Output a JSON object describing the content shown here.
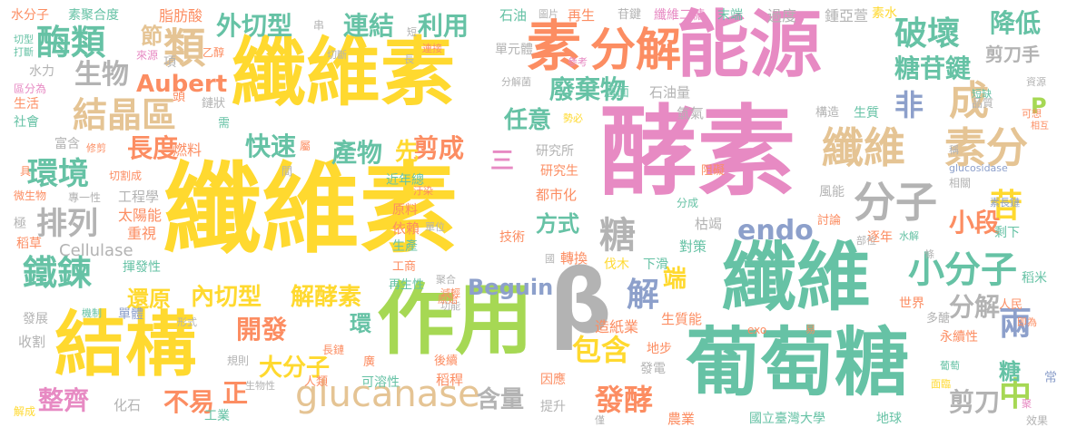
{
  "palette": {
    "green": "#66c2a5",
    "orange": "#fc8d62",
    "blue": "#8da0cb",
    "pink": "#e78ac3",
    "lime": "#a6d854",
    "yellow": "#ffd92f",
    "tan": "#e5c494",
    "gray": "#b3b3b3"
  },
  "words": [
    {
      "text": "酵素",
      "color": "pink"
    },
    {
      "text": "纖維素",
      "color": "yellow"
    },
    {
      "text": "纖維素",
      "color": "yellow"
    },
    {
      "text": "能源",
      "color": "pink"
    },
    {
      "text": "葡萄糖",
      "color": "green"
    },
    {
      "text": "纖維",
      "color": "green"
    },
    {
      "text": "作用",
      "color": "lime"
    },
    {
      "text": "結構",
      "color": "yellow"
    },
    {
      "text": "β",
      "color": "gray"
    },
    {
      "text": "素",
      "color": "orange"
    },
    {
      "text": "分解",
      "color": "orange"
    },
    {
      "text": "纖維",
      "color": "tan"
    },
    {
      "text": "素分",
      "color": "tan"
    },
    {
      "text": "分子",
      "color": "gray"
    },
    {
      "text": "小分子",
      "color": "green"
    },
    {
      "text": "glucanase",
      "color": "tan"
    },
    {
      "text": "酶類",
      "color": "green"
    },
    {
      "text": "類",
      "color": "tan"
    },
    {
      "text": "結晶區",
      "color": "tan"
    },
    {
      "text": "環境",
      "color": "green"
    },
    {
      "text": "排列",
      "color": "gray"
    },
    {
      "text": "鐵鍊",
      "color": "green"
    },
    {
      "text": "破壞",
      "color": "green"
    },
    {
      "text": "外切型",
      "color": "green"
    },
    {
      "text": "連結",
      "color": "green"
    },
    {
      "text": "利用",
      "color": "green"
    },
    {
      "text": "降低",
      "color": "green"
    },
    {
      "text": "糖苷鍵",
      "color": "green"
    },
    {
      "text": "生物",
      "color": "gray"
    },
    {
      "text": "Aubert",
      "color": "orange"
    },
    {
      "text": "廢棄物",
      "color": "green"
    },
    {
      "text": "長度",
      "color": "orange"
    },
    {
      "text": "快速",
      "color": "green"
    },
    {
      "text": "產物",
      "color": "green"
    },
    {
      "text": "剪成",
      "color": "orange"
    },
    {
      "text": "任意",
      "color": "green"
    },
    {
      "text": "成",
      "color": "tan"
    },
    {
      "text": "非",
      "color": "blue"
    },
    {
      "text": "endo",
      "color": "blue"
    },
    {
      "text": "苷",
      "color": "yellow"
    },
    {
      "text": "小段",
      "color": "orange"
    },
    {
      "text": "糖",
      "color": "gray"
    },
    {
      "text": "還原",
      "color": "yellow"
    },
    {
      "text": "內切型",
      "color": "yellow"
    },
    {
      "text": "解酵素",
      "color": "yellow"
    },
    {
      "text": "Beguin",
      "color": "blue"
    },
    {
      "text": "開發",
      "color": "orange"
    },
    {
      "text": "大分子",
      "color": "yellow"
    },
    {
      "text": "包含",
      "color": "yellow"
    },
    {
      "text": "發酵",
      "color": "orange"
    },
    {
      "text": "含量",
      "color": "gray"
    },
    {
      "text": "整齊",
      "color": "pink"
    },
    {
      "text": "不易",
      "color": "orange"
    },
    {
      "text": "方式",
      "color": "green"
    },
    {
      "text": "解",
      "color": "blue"
    },
    {
      "text": "剪刀",
      "color": "gray"
    },
    {
      "text": "中",
      "color": "lime"
    },
    {
      "text": "兩",
      "color": "blue"
    },
    {
      "text": "分解",
      "color": "gray"
    },
    {
      "text": "節",
      "color": "tan"
    },
    {
      "text": "Cellulase",
      "color": "gray"
    },
    {
      "text": "三",
      "color": "pink"
    },
    {
      "text": "先",
      "color": "yellow"
    },
    {
      "text": "糖",
      "color": "green"
    },
    {
      "text": "剪刀手",
      "color": "gray"
    },
    {
      "text": "端",
      "color": "yellow"
    },
    {
      "text": "正",
      "color": "orange"
    },
    {
      "text": "環",
      "color": "green"
    },
    {
      "text": "P",
      "color": "lime"
    }
  ],
  "small_words": [
    {
      "text": "水分子",
      "color": "orange"
    },
    {
      "text": "素聚合度",
      "color": "green"
    },
    {
      "text": "脂肪酸",
      "color": "orange"
    },
    {
      "text": "石油",
      "color": "green"
    },
    {
      "text": "再生",
      "color": "orange"
    },
    {
      "text": "纖維二糖",
      "color": "pink"
    },
    {
      "text": "末端",
      "color": "green"
    },
    {
      "text": "過度",
      "color": "gray"
    },
    {
      "text": "鍾亞萱",
      "color": "gray"
    },
    {
      "text": "素水",
      "color": "yellow"
    },
    {
      "text": "石油量",
      "color": "gray"
    },
    {
      "text": "氫氣",
      "color": "gray"
    },
    {
      "text": "層面",
      "color": "green"
    },
    {
      "text": "研究所",
      "color": "gray"
    },
    {
      "text": "研究生",
      "color": "orange"
    },
    {
      "text": "燃料",
      "color": "orange"
    },
    {
      "text": "太陽能",
      "color": "orange"
    },
    {
      "text": "工程學",
      "color": "gray"
    },
    {
      "text": "重視",
      "color": "orange"
    },
    {
      "text": "稻草",
      "color": "orange"
    },
    {
      "text": "揮發性",
      "color": "green"
    },
    {
      "text": "單體",
      "color": "blue"
    },
    {
      "text": "收割",
      "color": "gray"
    },
    {
      "text": "發展",
      "color": "gray"
    },
    {
      "text": "化石",
      "color": "gray"
    },
    {
      "text": "工業",
      "color": "green"
    },
    {
      "text": "人類",
      "color": "orange"
    },
    {
      "text": "可溶性",
      "color": "green"
    },
    {
      "text": "稻稈",
      "color": "orange"
    },
    {
      "text": "後續",
      "color": "orange"
    },
    {
      "text": "因應",
      "color": "orange"
    },
    {
      "text": "提升",
      "color": "gray"
    },
    {
      "text": "發電",
      "color": "gray"
    },
    {
      "text": "農業",
      "color": "orange"
    },
    {
      "text": "國立臺灣大學",
      "color": "green"
    },
    {
      "text": "地球",
      "color": "green"
    },
    {
      "text": "永續性",
      "color": "orange"
    },
    {
      "text": "造紙業",
      "color": "orange"
    },
    {
      "text": "生質能",
      "color": "orange"
    },
    {
      "text": "轉換",
      "color": "orange"
    },
    {
      "text": "伐木",
      "color": "yellow"
    },
    {
      "text": "下滑",
      "color": "green"
    },
    {
      "text": "對策",
      "color": "green"
    },
    {
      "text": "技術",
      "color": "orange"
    },
    {
      "text": "依賴",
      "color": "orange"
    },
    {
      "text": "原料",
      "color": "orange"
    },
    {
      "text": "生產",
      "color": "green"
    },
    {
      "text": "工商",
      "color": "orange"
    },
    {
      "text": "再生性",
      "color": "green"
    },
    {
      "text": "近年總",
      "color": "green"
    },
    {
      "text": "都市化",
      "color": "orange"
    },
    {
      "text": "枯竭",
      "color": "gray"
    },
    {
      "text": "逐年",
      "color": "orange"
    },
    {
      "text": "剩下",
      "color": "green"
    },
    {
      "text": "稻米",
      "color": "green"
    },
    {
      "text": "人民",
      "color": "orange"
    },
    {
      "text": "世界",
      "color": "orange"
    },
    {
      "text": "多醣",
      "color": "gray"
    },
    {
      "text": "生活",
      "color": "orange"
    },
    {
      "text": "社會",
      "color": "green"
    },
    {
      "text": "富含",
      "color": "gray"
    },
    {
      "text": "水力",
      "color": "gray"
    },
    {
      "text": "區分為",
      "color": "pink"
    },
    {
      "text": "品質",
      "color": "gray"
    },
    {
      "text": "構造",
      "color": "gray"
    },
    {
      "text": "生質",
      "color": "green"
    },
    {
      "text": "風能",
      "color": "gray"
    },
    {
      "text": "相關",
      "color": "gray"
    },
    {
      "text": "討論",
      "color": "orange"
    },
    {
      "text": "glucosidase",
      "color": "blue"
    },
    {
      "text": "素長鏈",
      "color": "blue"
    },
    {
      "text": "資源",
      "color": "gray"
    },
    {
      "text": "短缺",
      "color": "green"
    },
    {
      "text": "阻礙",
      "color": "orange"
    },
    {
      "text": "長鏈",
      "color": "orange"
    },
    {
      "text": "規則",
      "color": "gray"
    },
    {
      "text": "頭",
      "color": "orange"
    },
    {
      "text": "鏈狀",
      "color": "gray"
    },
    {
      "text": "需",
      "color": "green"
    },
    {
      "text": "項",
      "color": "gray"
    },
    {
      "text": "切割成",
      "color": "orange"
    },
    {
      "text": "專一性",
      "color": "gray"
    },
    {
      "text": "微生物",
      "color": "orange"
    },
    {
      "text": "極",
      "color": "gray"
    },
    {
      "text": "地步",
      "color": "orange"
    },
    {
      "text": "效果",
      "color": "gray"
    },
    {
      "text": "解成",
      "color": "yellow"
    },
    {
      "text": "功能",
      "color": "gray"
    },
    {
      "text": "減輕",
      "color": "orange"
    },
    {
      "text": "聚合",
      "color": "gray"
    },
    {
      "text": "部位",
      "color": "gray"
    },
    {
      "text": "水解",
      "color": "green"
    },
    {
      "text": "分成",
      "color": "green"
    },
    {
      "text": "葡萄",
      "color": "green"
    },
    {
      "text": "即為",
      "color": "orange"
    },
    {
      "text": "單元體",
      "color": "gray"
    },
    {
      "text": "分解菌",
      "color": "gray"
    },
    {
      "text": "連接",
      "color": "orange"
    },
    {
      "text": "來源",
      "color": "pink"
    },
    {
      "text": "切斷",
      "color": "gray"
    },
    {
      "text": "打斷",
      "color": "green"
    },
    {
      "text": "切型",
      "color": "green"
    },
    {
      "text": "參考",
      "color": "pink"
    },
    {
      "text": "勢必",
      "color": "yellow"
    },
    {
      "text": "苷鍵",
      "color": "gray"
    },
    {
      "text": "圖片",
      "color": "gray"
    },
    {
      "text": "乙醇",
      "color": "orange"
    },
    {
      "text": "機制",
      "color": "green"
    },
    {
      "text": "形式",
      "color": "gray"
    },
    {
      "text": "廣",
      "color": "orange"
    },
    {
      "text": "汙染",
      "color": "orange"
    },
    {
      "text": "單位",
      "color": "gray"
    },
    {
      "text": "原始",
      "color": "orange"
    },
    {
      "text": "國",
      "color": "gray"
    },
    {
      "text": "exo",
      "color": "orange"
    },
    {
      "text": "面臨",
      "color": "yellow"
    },
    {
      "text": "常",
      "color": "blue"
    },
    {
      "text": "僅",
      "color": "gray"
    },
    {
      "text": "聚",
      "color": "pink"
    },
    {
      "text": "易",
      "color": "orange"
    },
    {
      "text": "條",
      "color": "gray"
    },
    {
      "text": "屬",
      "color": "orange"
    },
    {
      "text": "間",
      "color": "gray"
    },
    {
      "text": "串",
      "color": "gray"
    },
    {
      "text": "短",
      "color": "gray"
    },
    {
      "text": "長",
      "color": "gray"
    },
    {
      "text": "具",
      "color": "orange"
    },
    {
      "text": "稱",
      "color": "gray"
    },
    {
      "text": "可想",
      "color": "orange"
    },
    {
      "text": "相互",
      "color": "orange"
    },
    {
      "text": "修剪",
      "color": "orange"
    },
    {
      "text": "生物性",
      "color": "gray"
    }
  ]
}
